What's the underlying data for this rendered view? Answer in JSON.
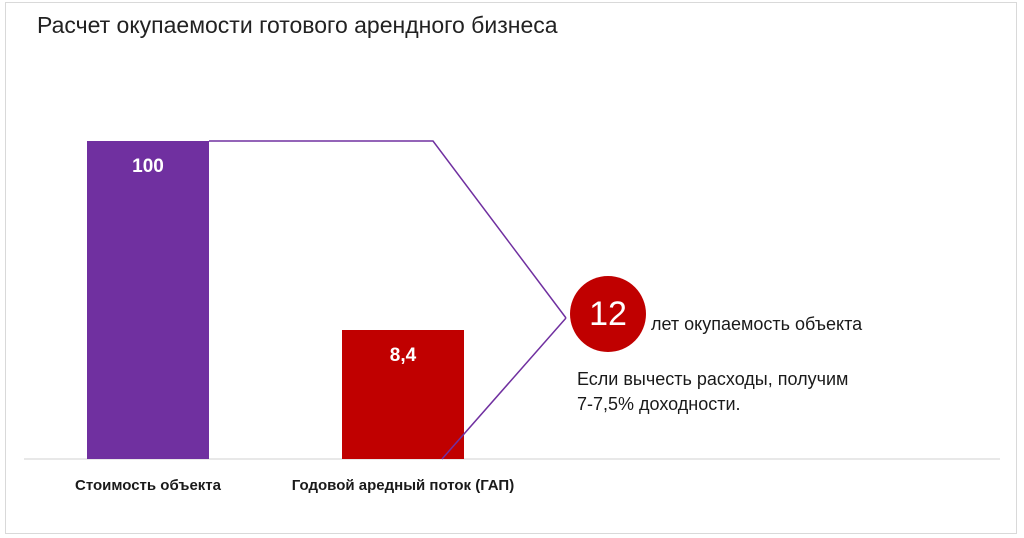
{
  "title": "Расчет окупаемости готового арендного бизнеса",
  "chart_data": {
    "type": "bar",
    "categories": [
      "Стоимость объекта",
      "Годовой аредный поток (ГАП)"
    ],
    "values": [
      100,
      8.4
    ],
    "value_labels": [
      "100",
      "8,4"
    ],
    "ylim": [
      0,
      100
    ]
  },
  "colors": {
    "bar1": "#7030a0",
    "bar2": "#c00000",
    "connector": "#7030a0",
    "badge": "#c00000",
    "axis": "#d0d0d0"
  },
  "annotation": {
    "badge_value": "12",
    "badge_text": "лет окупаемость объекта",
    "note": "Если вычесть расходы, получим\n7-7,5% доходности."
  }
}
